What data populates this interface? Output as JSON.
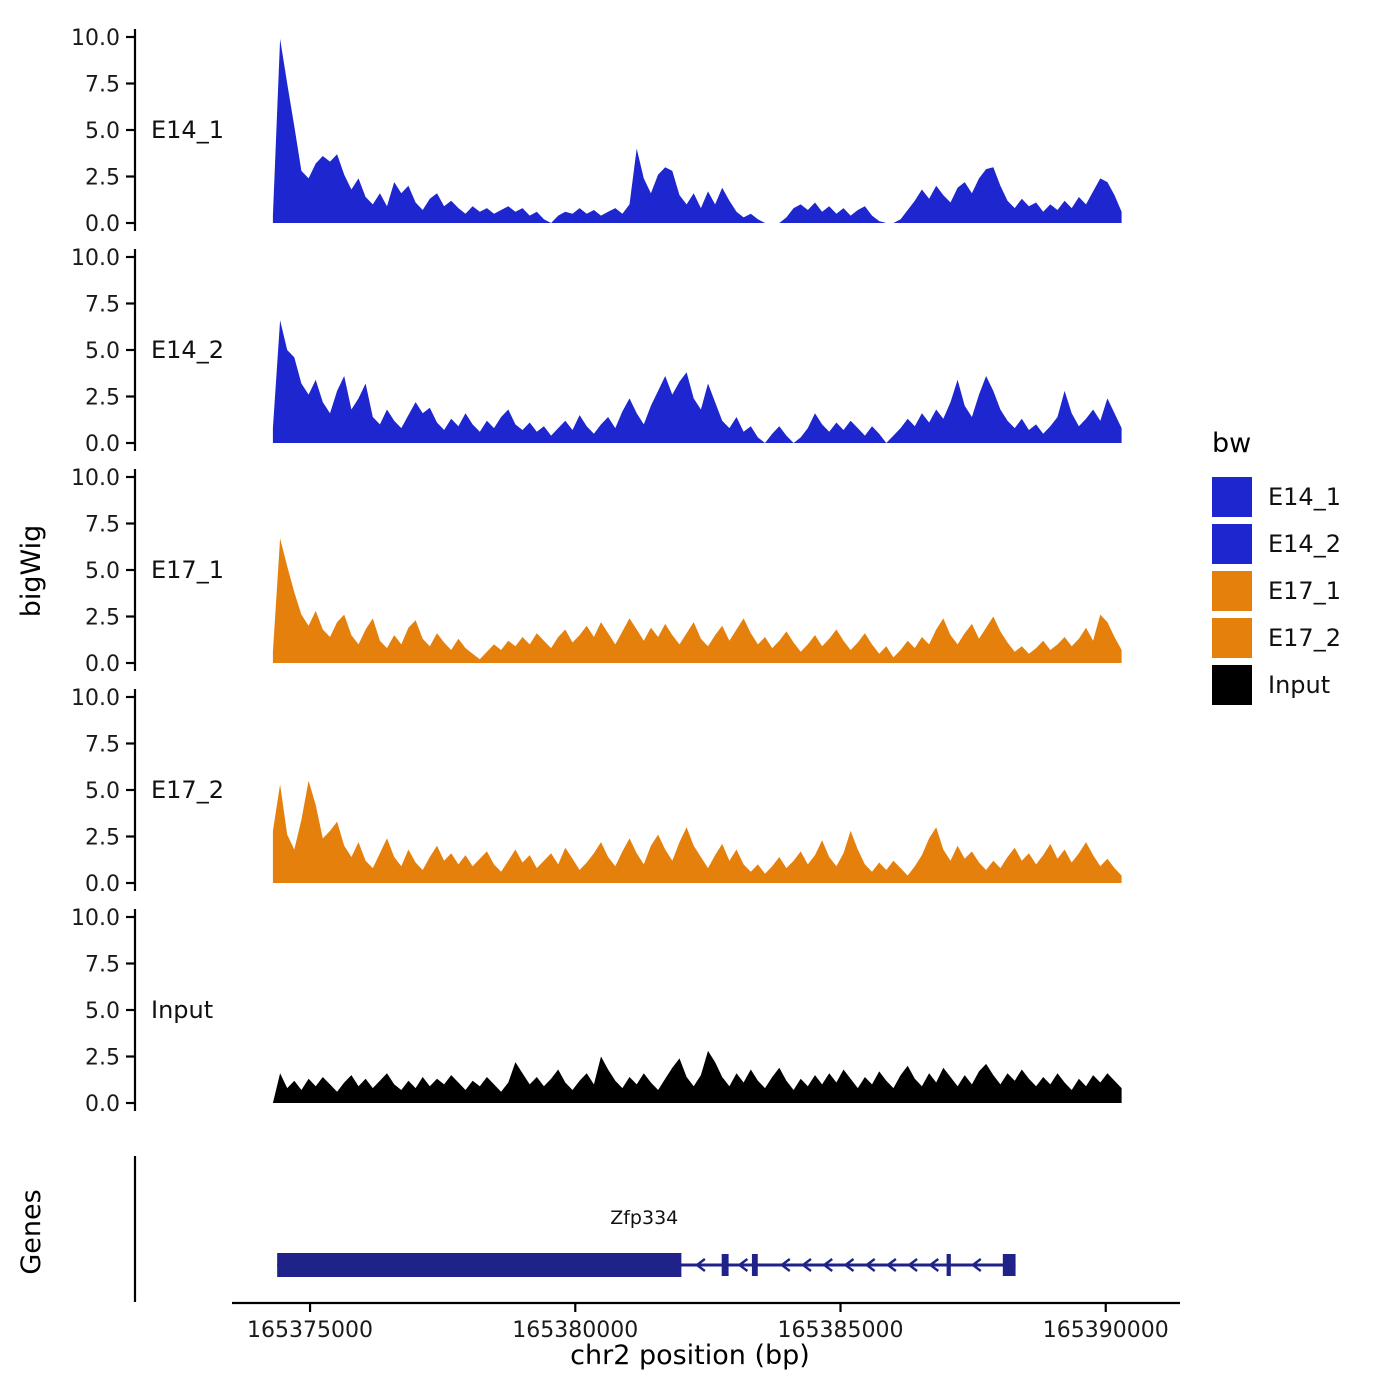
{
  "chart_data": {
    "type": "area",
    "title": "",
    "xlabel": "chr2 position (bp)",
    "ylabel": "bigWig",
    "grid": false,
    "legend_position": "right",
    "x_domain": [
      165371700,
      165391400
    ],
    "x_ticks": [
      165375000,
      165380000,
      165385000,
      165390000
    ],
    "x_tick_labels": [
      "165375000",
      "165380000",
      "165385000",
      "165390000"
    ],
    "y_ticks": [
      0,
      2.5,
      5,
      7.5,
      10
    ],
    "y_tick_labels": [
      "0.0",
      "2.5",
      "5.0",
      "7.5",
      "10.0"
    ],
    "ylim": [
      0,
      10.4
    ],
    "data_x_start": 165374300,
    "data_x_end": 165390300,
    "series": [
      {
        "name": "E14_1",
        "color": "#1E26D0",
        "values": [
          0.4,
          9.9,
          7.5,
          5.2,
          2.8,
          2.4,
          3.2,
          3.6,
          3.3,
          3.7,
          2.6,
          1.8,
          2.4,
          1.4,
          1.0,
          1.6,
          0.9,
          2.2,
          1.6,
          2.0,
          1.1,
          0.7,
          1.3,
          1.6,
          0.9,
          1.2,
          0.8,
          0.5,
          0.9,
          0.6,
          0.8,
          0.5,
          0.7,
          0.9,
          0.6,
          0.8,
          0.4,
          0.6,
          0.2,
          0.0,
          0.4,
          0.6,
          0.5,
          0.8,
          0.5,
          0.7,
          0.4,
          0.6,
          0.8,
          0.5,
          1.0,
          4.0,
          2.4,
          1.6,
          2.6,
          3.0,
          2.8,
          1.5,
          1.0,
          1.6,
          0.8,
          1.7,
          1.0,
          1.9,
          1.2,
          0.6,
          0.3,
          0.5,
          0.2,
          0.0,
          0.0,
          0.0,
          0.3,
          0.8,
          1.0,
          0.7,
          1.1,
          0.6,
          0.9,
          0.5,
          0.8,
          0.4,
          0.7,
          0.9,
          0.4,
          0.1,
          0.0,
          0.0,
          0.2,
          0.7,
          1.2,
          1.8,
          1.3,
          2.0,
          1.5,
          1.1,
          1.9,
          2.2,
          1.6,
          2.4,
          2.9,
          3.0,
          2.0,
          1.2,
          0.8,
          1.3,
          0.9,
          1.1,
          0.6,
          1.0,
          0.7,
          1.2,
          0.8,
          1.4,
          1.0,
          1.7,
          2.4,
          2.2,
          1.5,
          0.6
        ]
      },
      {
        "name": "E14_2",
        "color": "#1E26D0",
        "values": [
          0.8,
          6.6,
          5.0,
          4.6,
          3.2,
          2.6,
          3.4,
          2.2,
          1.6,
          2.8,
          3.6,
          1.8,
          2.4,
          3.2,
          1.4,
          1.0,
          1.8,
          1.2,
          0.8,
          1.5,
          2.2,
          1.6,
          1.9,
          1.1,
          0.7,
          1.3,
          0.9,
          1.6,
          1.0,
          0.6,
          1.2,
          0.8,
          1.4,
          1.8,
          1.0,
          0.7,
          1.1,
          0.6,
          0.9,
          0.4,
          0.8,
          1.2,
          0.7,
          1.5,
          0.9,
          0.5,
          1.0,
          1.4,
          0.8,
          1.7,
          2.4,
          1.6,
          1.0,
          2.0,
          2.8,
          3.6,
          2.6,
          3.3,
          3.8,
          2.4,
          1.8,
          3.2,
          2.2,
          1.2,
          0.8,
          1.4,
          0.6,
          0.9,
          0.3,
          0.0,
          0.5,
          0.9,
          0.4,
          0.0,
          0.3,
          0.8,
          1.6,
          1.0,
          0.6,
          1.1,
          0.7,
          1.2,
          0.8,
          0.4,
          0.9,
          0.5,
          0.0,
          0.4,
          0.8,
          1.3,
          0.9,
          1.6,
          1.1,
          1.8,
          1.3,
          2.2,
          3.4,
          2.0,
          1.4,
          2.6,
          3.6,
          2.8,
          1.8,
          1.2,
          0.8,
          1.3,
          0.7,
          1.0,
          0.5,
          0.9,
          1.4,
          2.8,
          1.6,
          0.9,
          1.3,
          1.8,
          1.2,
          2.4,
          1.6,
          0.8
        ]
      },
      {
        "name": "E17_1",
        "color": "#E5800C",
        "values": [
          0.6,
          6.7,
          5.2,
          3.8,
          2.6,
          2.0,
          2.8,
          1.8,
          1.4,
          2.2,
          2.6,
          1.5,
          1.0,
          1.8,
          2.4,
          1.2,
          0.8,
          1.5,
          1.0,
          1.9,
          2.3,
          1.3,
          0.9,
          1.6,
          1.1,
          0.7,
          1.3,
          0.8,
          0.5,
          0.2,
          0.6,
          1.0,
          0.7,
          1.2,
          0.9,
          1.4,
          1.0,
          1.6,
          1.2,
          0.8,
          1.4,
          1.8,
          1.1,
          1.5,
          2.0,
          1.4,
          2.2,
          1.6,
          1.0,
          1.7,
          2.4,
          1.8,
          1.2,
          1.9,
          1.4,
          2.1,
          1.5,
          1.0,
          1.6,
          2.2,
          1.3,
          0.9,
          1.5,
          2.0,
          1.2,
          1.8,
          2.4,
          1.6,
          1.0,
          1.4,
          0.8,
          1.2,
          1.7,
          1.1,
          0.6,
          1.0,
          1.5,
          0.9,
          1.3,
          1.8,
          1.2,
          0.7,
          1.1,
          1.6,
          1.0,
          0.5,
          0.9,
          0.3,
          0.7,
          1.2,
          0.8,
          1.4,
          1.0,
          1.8,
          2.4,
          1.5,
          1.0,
          1.6,
          2.1,
          1.3,
          1.9,
          2.5,
          1.7,
          1.1,
          0.6,
          0.9,
          0.5,
          0.8,
          1.2,
          0.7,
          1.0,
          1.4,
          0.9,
          1.3,
          1.9,
          1.2,
          2.6,
          2.2,
          1.4,
          0.7
        ]
      },
      {
        "name": "E17_2",
        "color": "#E5800C",
        "values": [
          2.8,
          5.3,
          2.6,
          1.8,
          3.4,
          5.5,
          4.2,
          2.4,
          2.8,
          3.3,
          2.0,
          1.4,
          2.2,
          1.2,
          0.8,
          1.6,
          2.4,
          1.4,
          0.9,
          1.8,
          1.1,
          0.7,
          1.4,
          2.0,
          1.2,
          1.6,
          1.0,
          1.5,
          0.9,
          1.3,
          1.7,
          1.0,
          0.6,
          1.2,
          1.8,
          1.1,
          1.5,
          0.8,
          1.2,
          1.6,
          1.0,
          1.9,
          1.3,
          0.7,
          1.1,
          1.6,
          2.2,
          1.4,
          0.9,
          1.7,
          2.4,
          1.6,
          1.0,
          2.0,
          2.6,
          1.8,
          1.2,
          2.2,
          3.0,
          2.0,
          1.4,
          0.8,
          1.5,
          2.1,
          1.2,
          1.8,
          1.0,
          0.6,
          1.0,
          0.5,
          0.9,
          1.4,
          0.8,
          1.2,
          1.7,
          1.0,
          1.5,
          2.3,
          1.4,
          0.9,
          1.6,
          2.8,
          1.8,
          1.0,
          0.6,
          1.1,
          0.7,
          1.2,
          0.8,
          0.4,
          0.9,
          1.5,
          2.4,
          3.0,
          1.8,
          1.2,
          2.0,
          1.3,
          1.7,
          1.1,
          0.7,
          1.2,
          0.8,
          1.4,
          1.9,
          1.2,
          1.6,
          1.0,
          1.5,
          2.1,
          1.3,
          1.8,
          1.1,
          1.6,
          2.2,
          1.5,
          0.9,
          1.3,
          0.8,
          0.4
        ]
      },
      {
        "name": "Input",
        "color": "#000000",
        "values": [
          0.0,
          1.6,
          0.8,
          1.2,
          0.7,
          1.3,
          0.9,
          1.4,
          1.0,
          0.6,
          1.1,
          1.5,
          0.9,
          1.3,
          0.8,
          1.2,
          1.6,
          1.0,
          0.7,
          1.2,
          0.8,
          1.4,
          0.9,
          1.3,
          1.0,
          1.5,
          1.1,
          0.7,
          1.2,
          0.9,
          1.4,
          1.0,
          0.6,
          1.1,
          2.2,
          1.6,
          1.0,
          1.4,
          0.9,
          1.3,
          1.8,
          1.1,
          0.7,
          1.2,
          1.6,
          1.0,
          2.5,
          1.8,
          1.2,
          0.8,
          1.4,
          1.0,
          1.6,
          1.1,
          0.7,
          1.3,
          1.9,
          2.4,
          1.4,
          0.9,
          1.5,
          2.8,
          2.2,
          1.4,
          0.9,
          1.6,
          1.1,
          1.8,
          1.2,
          0.8,
          1.4,
          1.9,
          1.2,
          0.7,
          1.3,
          0.9,
          1.5,
          1.0,
          1.6,
          1.1,
          1.8,
          1.3,
          0.8,
          1.4,
          1.0,
          1.7,
          1.2,
          0.8,
          1.5,
          2.0,
          1.3,
          0.9,
          1.6,
          1.1,
          1.9,
          1.4,
          0.9,
          1.5,
          1.0,
          1.7,
          2.1,
          1.5,
          1.0,
          1.6,
          1.2,
          1.8,
          1.3,
          0.9,
          1.4,
          1.0,
          1.6,
          1.1,
          0.7,
          1.3,
          0.9,
          1.5,
          1.1,
          1.6,
          1.2,
          0.8
        ]
      }
    ],
    "legend": {
      "title": "bw",
      "items": [
        {
          "label": "E14_1",
          "color": "#1E26D0"
        },
        {
          "label": "E14_2",
          "color": "#1E26D0"
        },
        {
          "label": "E17_1",
          "color": "#E5800C"
        },
        {
          "label": "E17_2",
          "color": "#E5800C"
        },
        {
          "label": "Input",
          "color": "#000000"
        }
      ]
    },
    "genes_panel": {
      "label": "Genes",
      "gene": {
        "name": "Zfp334",
        "strand": "-",
        "color": "#1F2288",
        "start": 165374380,
        "end": 165388300,
        "thick_box": {
          "start": 165374380,
          "end": 165382000
        },
        "exons": [
          {
            "start": 165382760,
            "end": 165382890
          },
          {
            "start": 165383330,
            "end": 165383440
          },
          {
            "start": 165387000,
            "end": 165387080
          },
          {
            "start": 165388060,
            "end": 165388300
          }
        ],
        "label_position": 165381300
      }
    }
  }
}
